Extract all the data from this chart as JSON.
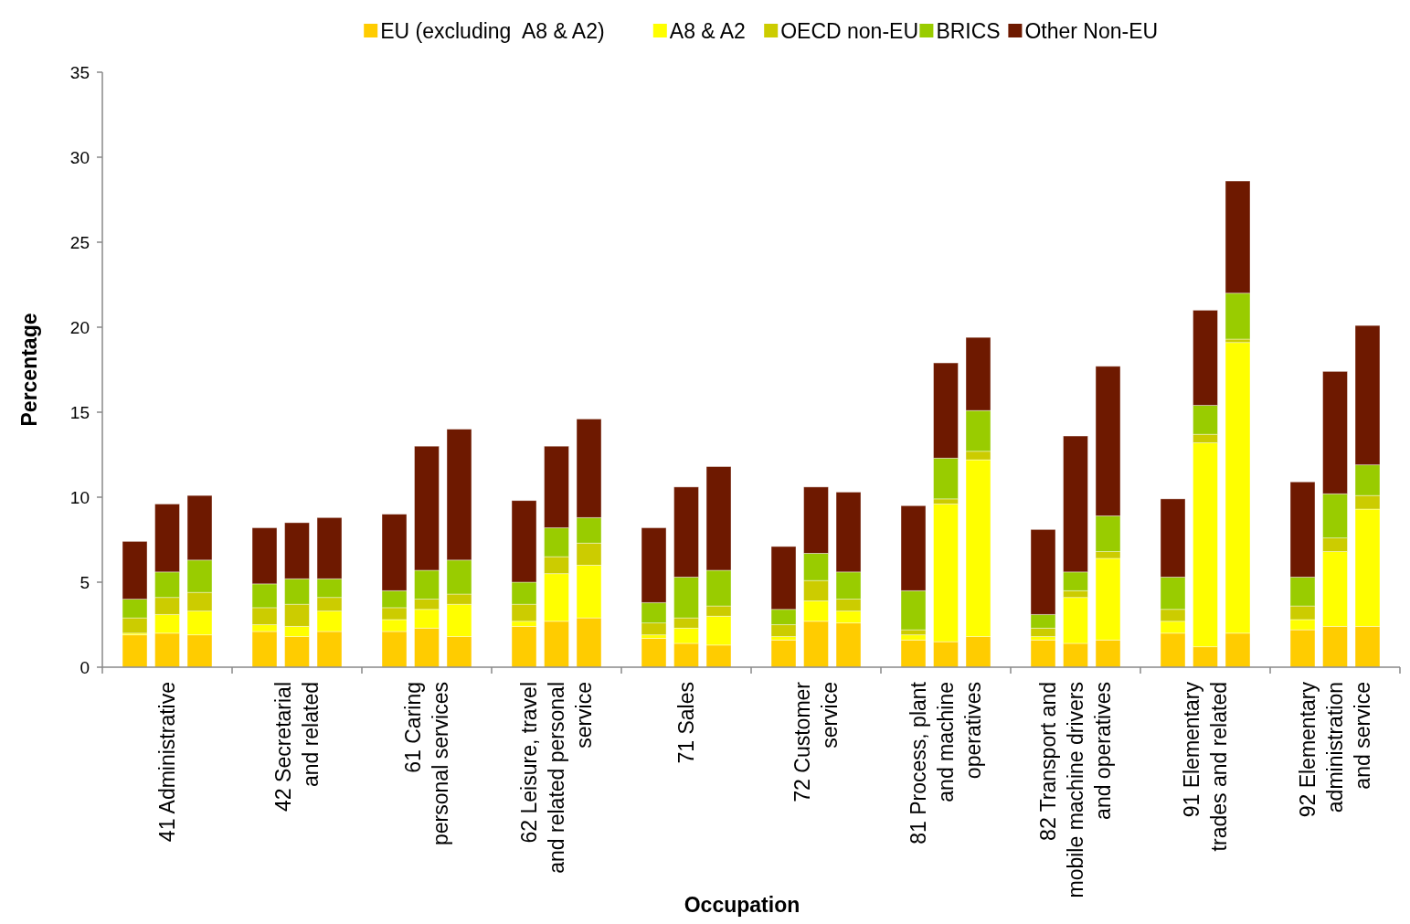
{
  "chart_data": {
    "type": "bar",
    "stacked": true,
    "xlabel": "Occupation",
    "ylabel": "Percentage",
    "categories": [
      null,
      "41 Administrative",
      null,
      null,
      "42 Secretarial\nand related",
      null,
      null,
      "61 Caring\npersonal services",
      null,
      null,
      "62 Leisure, travel\nand related personal\nservice",
      null,
      null,
      "71 Sales",
      null,
      null,
      "72 Customer\nservice",
      null,
      null,
      "81 Process, plant\nand machine\noperatives",
      null,
      null,
      "82 Transport and\nmobile machine drivers\nand operatives",
      null,
      null,
      "91 Elementary\ntrades and related",
      null,
      null,
      "92 Elementary\nadministration\nand service",
      null
    ],
    "series": [
      {
        "name": "EU (excluding  A8 & A2)",
        "color": "#ffcc00",
        "values": [
          1.9,
          2.0,
          1.9,
          2.1,
          1.8,
          2.1,
          2.1,
          2.3,
          1.8,
          2.4,
          2.7,
          2.9,
          1.7,
          1.4,
          1.3,
          1.6,
          2.7,
          2.6,
          1.6,
          1.5,
          1.8,
          1.6,
          1.4,
          1.6,
          2.0,
          1.2,
          2.0,
          2.2,
          2.4,
          2.4
        ]
      },
      {
        "name": "A8 & A2",
        "color": "#ffff00",
        "values": [
          0.1,
          1.1,
          1.4,
          0.4,
          0.6,
          1.2,
          0.7,
          1.1,
          1.9,
          0.3,
          2.8,
          3.1,
          0.2,
          0.9,
          1.7,
          0.2,
          1.2,
          0.7,
          0.3,
          8.1,
          10.4,
          0.2,
          2.7,
          4.8,
          0.7,
          12.0,
          17.1,
          0.6,
          4.4,
          6.9
        ]
      },
      {
        "name": "OECD non-EU",
        "color": "#cccc00",
        "values": [
          0.9,
          1.0,
          1.1,
          1.0,
          1.3,
          0.8,
          0.7,
          0.6,
          0.6,
          1.0,
          1.0,
          1.3,
          0.7,
          0.6,
          0.6,
          0.7,
          1.2,
          0.7,
          0.3,
          0.3,
          0.5,
          0.5,
          0.4,
          0.4,
          0.7,
          0.5,
          0.2,
          0.8,
          0.8,
          0.8
        ]
      },
      {
        "name": "BRICS",
        "color": "#99cc00",
        "values": [
          1.1,
          1.5,
          1.9,
          1.4,
          1.5,
          1.1,
          1.0,
          1.7,
          2.0,
          1.3,
          1.7,
          1.5,
          1.2,
          2.4,
          2.1,
          0.9,
          1.6,
          1.6,
          2.3,
          2.4,
          2.4,
          0.8,
          1.1,
          2.1,
          1.9,
          1.7,
          2.7,
          1.7,
          2.6,
          1.8
        ]
      },
      {
        "name": "Other Non-EU",
        "color": "#6e1900",
        "values": [
          3.4,
          4.0,
          3.8,
          3.3,
          3.3,
          3.6,
          4.5,
          7.3,
          7.7,
          4.8,
          4.8,
          5.8,
          4.4,
          5.3,
          6.1,
          3.7,
          3.9,
          4.7,
          5.0,
          5.6,
          4.3,
          5.0,
          8.0,
          8.8,
          4.6,
          5.6,
          6.6,
          5.6,
          7.2,
          8.2
        ]
      }
    ],
    "ylim": [
      0,
      35
    ],
    "yticks": [
      0,
      5,
      10,
      15,
      20,
      25,
      30,
      35
    ],
    "grid": false,
    "legend": "top"
  }
}
